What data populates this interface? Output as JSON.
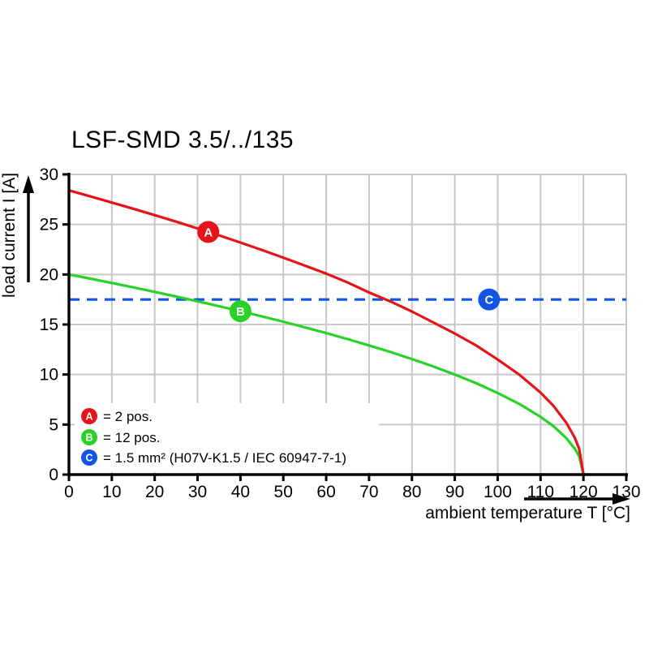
{
  "page_title": "LSF-SMD 3.5/../135",
  "chart_data": {
    "type": "line",
    "title": "LSF-SMD 3.5/../135",
    "xlabel": "ambient temperature T [°C]",
    "ylabel": "load current I [A]",
    "xlim": [
      0,
      130
    ],
    "ylim": [
      0,
      30
    ],
    "x_ticks": [
      0,
      10,
      20,
      30,
      40,
      50,
      60,
      70,
      80,
      90,
      100,
      110,
      120,
      130
    ],
    "y_ticks": [
      0,
      5,
      10,
      15,
      20,
      25,
      30
    ],
    "grid": true,
    "legend_position": "bottom-left-inside",
    "colors": {
      "background": "#ffffff",
      "grid": "#c8c8c8",
      "axis": "#000000",
      "marker_text": "#ffffff",
      "red": "#e41419",
      "green": "#28d228",
      "blue": "#1454e4"
    },
    "series": [
      {
        "id": "A",
        "legend_label": "= 2 pos.",
        "color": "#e41419",
        "line_style": "solid",
        "marker": {
          "letter": "A",
          "x": 32.5,
          "y": 24.25
        },
        "points": [
          [
            0,
            28.4
          ],
          [
            5,
            27.8
          ],
          [
            10,
            27.19
          ],
          [
            15,
            26.57
          ],
          [
            20,
            25.93
          ],
          [
            25,
            25.28
          ],
          [
            30,
            24.6
          ],
          [
            35,
            23.91
          ],
          [
            40,
            23.19
          ],
          [
            45,
            22.45
          ],
          [
            50,
            21.68
          ],
          [
            55,
            20.89
          ],
          [
            60,
            20.08
          ],
          [
            65,
            19.2
          ],
          [
            70,
            18.2
          ],
          [
            75,
            17.3
          ],
          [
            80,
            16.3
          ],
          [
            85,
            15.2
          ],
          [
            90,
            14.1
          ],
          [
            95,
            12.9
          ],
          [
            100,
            11.5
          ],
          [
            105,
            10.0
          ],
          [
            110,
            8.2
          ],
          [
            113,
            6.87
          ],
          [
            116,
            5.19
          ],
          [
            118,
            3.67
          ],
          [
            119,
            2.59
          ],
          [
            120,
            0
          ]
        ]
      },
      {
        "id": "B",
        "legend_label": "= 12 pos.",
        "color": "#28d228",
        "line_style": "solid",
        "marker": {
          "letter": "B",
          "x": 40,
          "y": 16.33
        },
        "points": [
          [
            0,
            20
          ],
          [
            5,
            19.58
          ],
          [
            10,
            19.15
          ],
          [
            15,
            18.71
          ],
          [
            20,
            18.26
          ],
          [
            25,
            17.8
          ],
          [
            30,
            17.32
          ],
          [
            35,
            16.83
          ],
          [
            40,
            16.33
          ],
          [
            45,
            15.81
          ],
          [
            50,
            15.28
          ],
          [
            55,
            14.72
          ],
          [
            60,
            14.14
          ],
          [
            65,
            13.54
          ],
          [
            70,
            12.91
          ],
          [
            75,
            12.25
          ],
          [
            80,
            11.55
          ],
          [
            85,
            10.8
          ],
          [
            90,
            10.0
          ],
          [
            95,
            9.13
          ],
          [
            100,
            8.16
          ],
          [
            105,
            7.07
          ],
          [
            110,
            5.77
          ],
          [
            113,
            4.84
          ],
          [
            116,
            3.65
          ],
          [
            118,
            2.58
          ],
          [
            119,
            1.83
          ],
          [
            120,
            0
          ]
        ]
      },
      {
        "id": "C",
        "legend_label": "= 1.5 mm² (H07V-K1.5 / IEC 60947-7-1)",
        "color": "#1454e4",
        "line_style": "dashed",
        "marker": {
          "letter": "C",
          "x": 98,
          "y": 17.5
        },
        "points": [
          [
            0,
            17.5
          ],
          [
            130,
            17.5
          ]
        ]
      }
    ]
  }
}
